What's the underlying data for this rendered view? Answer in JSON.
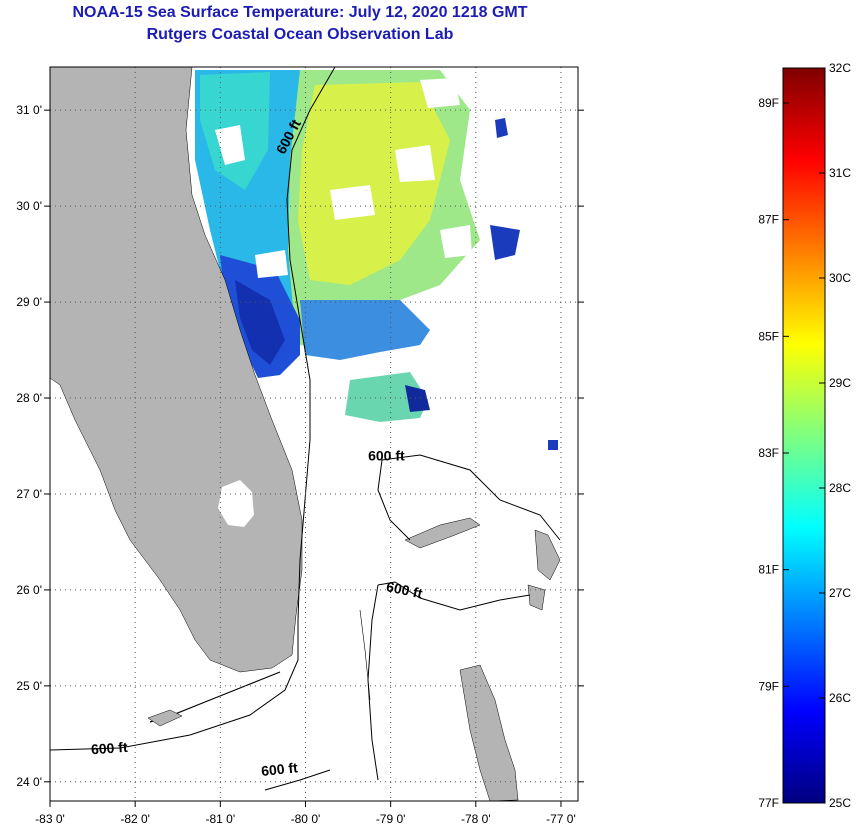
{
  "title": {
    "line1": "NOAA-15 Sea Surface Temperature:  July 12, 2020 1218 GMT",
    "line2": "Rutgers Coastal Ocean Observation Lab"
  },
  "map": {
    "lon_range": [
      -83.0,
      -76.8
    ],
    "lat_range": [
      23.8,
      31.45
    ],
    "lon_ticks": [
      {
        "value": -83,
        "label": "-83 0'"
      },
      {
        "value": -82,
        "label": "-82 0'"
      },
      {
        "value": -81,
        "label": "-81 0'"
      },
      {
        "value": -80,
        "label": "-80 0'"
      },
      {
        "value": -79,
        "label": "-79 0'"
      },
      {
        "value": -78,
        "label": "-78 0'"
      },
      {
        "value": -77,
        "label": "-77 0'"
      }
    ],
    "lat_ticks": [
      {
        "value": 24,
        "label": "24 0'"
      },
      {
        "value": 25,
        "label": "25 0'"
      },
      {
        "value": 26,
        "label": "26 0'"
      },
      {
        "value": 27,
        "label": "27 0'"
      },
      {
        "value": 28,
        "label": "28 0'"
      },
      {
        "value": 29,
        "label": "29 0'"
      },
      {
        "value": 30,
        "label": "30 0'"
      },
      {
        "value": 31,
        "label": "31 0'"
      }
    ],
    "contour_labels": [
      {
        "text": "600 ft",
        "lon": -80.15,
        "lat": 30.7,
        "rotate": -62
      },
      {
        "text": "600 ft",
        "lon": -79.05,
        "lat": 27.35,
        "rotate": 0
      },
      {
        "text": "600 ft",
        "lon": -78.85,
        "lat": 25.95,
        "rotate": 12
      },
      {
        "text": "600 ft",
        "lon": -82.3,
        "lat": 24.3,
        "rotate": -4
      },
      {
        "text": "600 ft",
        "lon": -80.3,
        "lat": 24.08,
        "rotate": -6
      }
    ],
    "colors": {
      "land": "#b4b4b4",
      "contour": "#000000",
      "grid": "#555555"
    }
  },
  "colorbar": {
    "min_c": 25,
    "max_c": 32,
    "celsius_labels": [
      "32C",
      "31C",
      "30C",
      "29C",
      "28C",
      "27C",
      "26C",
      "25C"
    ],
    "fahrenheit_labels": [
      "89F",
      "87F",
      "85F",
      "83F",
      "81F",
      "79F",
      "77F"
    ],
    "colormap": [
      "#00007f",
      "#0000ff",
      "#007fff",
      "#00ffff",
      "#7fff7f",
      "#ffff00",
      "#ff7f00",
      "#ff0000",
      "#7f0000"
    ]
  }
}
